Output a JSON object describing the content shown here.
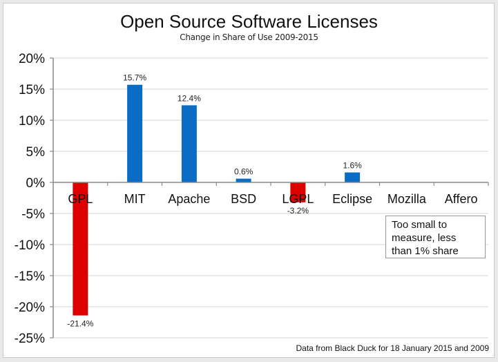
{
  "chart_data": {
    "type": "bar",
    "title": "Open Source Software Licenses",
    "subtitle": "Change in Share of Use 2009-2015",
    "xlabel": "",
    "ylabel": "",
    "ylim": [
      -25,
      20
    ],
    "yticks": [
      "20%",
      "15%",
      "10%",
      "5%",
      "0%",
      "-5%",
      "-10%",
      "-15%",
      "-20%",
      "-25%"
    ],
    "ytick_values": [
      20,
      15,
      10,
      5,
      0,
      -5,
      -10,
      -15,
      -20,
      -25
    ],
    "grid": true,
    "categories": [
      "GPL",
      "MIT",
      "Apache",
      "BSD",
      "LGPL",
      "Eclipse",
      "Mozilla",
      "Affero"
    ],
    "values": [
      -21.4,
      15.7,
      12.4,
      0.6,
      -3.2,
      1.6,
      null,
      null
    ],
    "data_labels": [
      "-21.4%",
      "15.7%",
      "12.4%",
      "0.6%",
      "-3.2%",
      "1.6%",
      "",
      ""
    ],
    "colors": {
      "positive": "#0a6cc4",
      "negative": "#dd0000"
    },
    "annotation": "Too small to measure, less than 1% share",
    "annotation_lines": [
      "Too small to",
      "measure, less",
      "than 1% share"
    ],
    "source_note": "Data from Black Duck for 18 January 2015 and 2009"
  }
}
